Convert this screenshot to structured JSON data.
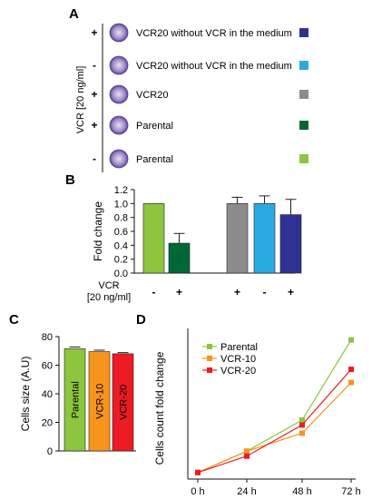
{
  "panel_a": {
    "letter": "A",
    "side_label": "VCR [20 ng/ml]",
    "rows": [
      {
        "sign": "+",
        "label": "VCR20 without VCR in the medium",
        "color": "#2e3192"
      },
      {
        "sign": "-",
        "label": "VCR20 without VCR in the medium",
        "color": "#29abe2"
      },
      {
        "sign": "+",
        "label": "VCR20",
        "color": "#8c8c8c"
      },
      {
        "sign": "+",
        "label": "Parental",
        "color": "#006837"
      },
      {
        "sign": "-",
        "label": "Parental",
        "color": "#8cc63f"
      }
    ]
  },
  "chart_data": [
    {
      "panel": "B",
      "type": "bar",
      "ylabel": "Fold change",
      "ylim": [
        0,
        1.2
      ],
      "yticks": [
        "0.0",
        "0.2",
        "0.4",
        "0.6",
        "0.8",
        "1.0",
        "1.2"
      ],
      "row_label": [
        "VCR",
        "[20 ng/ml]"
      ],
      "groups": [
        {
          "values": [
            1.0,
            0.43
          ],
          "errors": [
            0,
            0.14
          ],
          "colors": [
            "#8cc63f",
            "#006837"
          ],
          "signs": [
            "-",
            "+"
          ]
        },
        {
          "values": [
            1.0,
            1.0,
            0.84
          ],
          "errors": [
            0.09,
            0.11,
            0.22
          ],
          "colors": [
            "#8c8c8c",
            "#29abe2",
            "#2e3192"
          ],
          "signs": [
            "+",
            "-",
            "+"
          ]
        }
      ]
    },
    {
      "panel": "C",
      "type": "bar",
      "ylabel": "Cells size (A.U)",
      "ylim": [
        0,
        80
      ],
      "yticks": [
        "0",
        "20",
        "40",
        "60",
        "80"
      ],
      "categories": [
        "Parental",
        "VCR-10",
        "VCR-20"
      ],
      "values": [
        71.5,
        69.5,
        68
      ],
      "errors": [
        1.2,
        1.0,
        0.8
      ],
      "colors": [
        "#8cc63f",
        "#f7941d",
        "#ed1c24"
      ]
    },
    {
      "panel": "D",
      "type": "line",
      "ylabel": "Cells count fold change",
      "x": [
        "0 h",
        "24 h",
        "48 h",
        "72 h"
      ],
      "ylim": [
        0.8,
        5.4
      ],
      "series": [
        {
          "name": "Parental",
          "color": "#8cc63f",
          "values": [
            1.0,
            1.65,
            2.6,
            5.05
          ]
        },
        {
          "name": "VCR-10",
          "color": "#f7941d",
          "values": [
            1.0,
            1.65,
            2.2,
            3.75
          ]
        },
        {
          "name": "VCR-20",
          "color": "#ed1c24",
          "values": [
            1.0,
            1.5,
            2.45,
            4.15
          ]
        }
      ]
    }
  ],
  "panel_letters": {
    "b": "B",
    "c": "C",
    "d": "D"
  }
}
